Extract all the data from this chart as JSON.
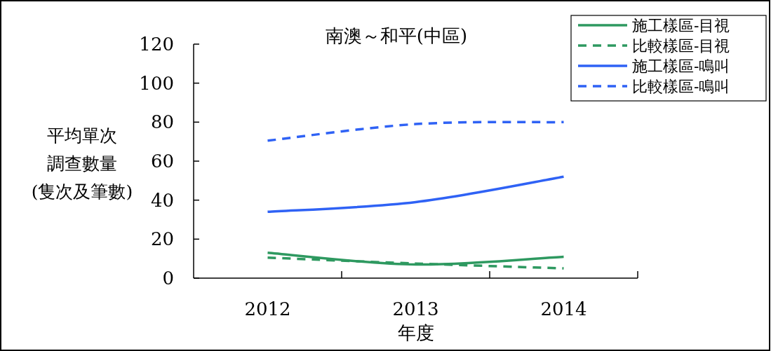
{
  "chart_data": {
    "type": "line",
    "title": "南澳～和平(中區)",
    "xlabel": "年度",
    "ylabel": "平均單次調查數量(隻次及筆數)",
    "categories": [
      "2012",
      "2013",
      "2014"
    ],
    "ylim": [
      0,
      120
    ],
    "yticks": [
      0,
      20,
      40,
      60,
      80,
      100,
      120
    ],
    "grid": false,
    "legend": "top right",
    "marker": "none",
    "series": [
      {
        "name": "施工樣區-目視",
        "color": "#2e9960",
        "line_style": "solid",
        "values": [
          13,
          7,
          11
        ]
      },
      {
        "name": "比較樣區-目視",
        "color": "#2e9960",
        "line_style": "dashed",
        "values": [
          10.5,
          7.5,
          5
        ]
      },
      {
        "name": "施工樣區-鳴叫",
        "color": "#2f62f5",
        "line_style": "solid",
        "values": [
          34,
          39,
          52
        ]
      },
      {
        "name": "比較樣區-鳴叫",
        "color": "#2f62f5",
        "line_style": "dashed",
        "values": [
          70.5,
          79,
          80
        ]
      }
    ]
  }
}
